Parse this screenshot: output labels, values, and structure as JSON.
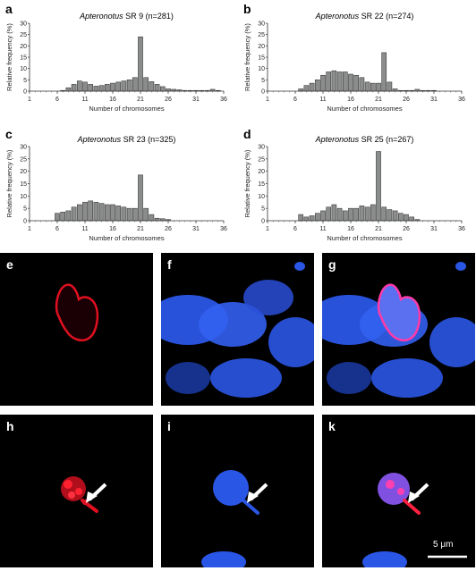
{
  "charts": [
    {
      "type": "bar",
      "panel": "a",
      "species": "Apteronotus",
      "title_rest": " SR 9 (n=281)",
      "xlabel": "Number of chromosomes",
      "ylabel": "Relative frequency (%)",
      "xticks": [
        1,
        6,
        11,
        16,
        21,
        26,
        31,
        36
      ],
      "xticklabels": [
        "1",
        "6",
        "11",
        "16",
        "21",
        "26",
        "31",
        "36"
      ],
      "yticks": [
        0,
        5,
        10,
        15,
        20,
        25,
        30
      ],
      "xlim": [
        1,
        36
      ],
      "ylim": [
        0,
        30
      ],
      "x": [
        7,
        8,
        9,
        10,
        11,
        12,
        13,
        14,
        15,
        16,
        17,
        18,
        19,
        20,
        21,
        22,
        23,
        24,
        25,
        26,
        27,
        28,
        29,
        30,
        31,
        32,
        33,
        34,
        35
      ],
      "values": [
        0.3,
        1.5,
        3.0,
        4.5,
        4.0,
        3.0,
        2.2,
        2.5,
        3.0,
        3.5,
        4.0,
        4.5,
        5.0,
        6.0,
        24.0,
        6.0,
        4.2,
        3.0,
        2.0,
        1.0,
        0.8,
        0.6,
        0.3,
        0.3,
        0.3,
        0.3,
        0.3,
        0.8,
        0.3
      ]
    },
    {
      "type": "bar",
      "panel": "b",
      "species": "Apteronotus",
      "title_rest": " SR 22 (n=274)",
      "xlabel": "Number of chromosomes",
      "ylabel": "Relative frequency (%)",
      "xticks": [
        1,
        6,
        11,
        16,
        21,
        26,
        31,
        36
      ],
      "xticklabels": [
        "1",
        "6",
        "11",
        "16",
        "21",
        "26",
        "31",
        "36"
      ],
      "yticks": [
        0,
        5,
        10,
        15,
        20,
        25,
        30
      ],
      "xlim": [
        1,
        36
      ],
      "ylim": [
        0,
        30
      ],
      "x": [
        7,
        8,
        9,
        10,
        11,
        12,
        13,
        14,
        15,
        16,
        17,
        18,
        19,
        20,
        21,
        22,
        23,
        24,
        25,
        26,
        27,
        28,
        29,
        30,
        31
      ],
      "values": [
        1.0,
        2.5,
        3.5,
        5.0,
        7.0,
        8.5,
        9.0,
        8.5,
        8.5,
        7.5,
        7.0,
        6.0,
        4.0,
        3.5,
        3.5,
        17.0,
        4.0,
        1.0,
        0.3,
        0.3,
        0.3,
        0.8,
        0.3,
        0.3,
        0.3
      ]
    },
    {
      "type": "bar",
      "panel": "c",
      "species": "Apteronotus",
      "title_rest": " SR 23 (n=325)",
      "xlabel": "Number of chromosomes",
      "ylabel": "Relative frequency (%)",
      "xticks": [
        1,
        6,
        11,
        16,
        21,
        26,
        31,
        36
      ],
      "xticklabels": [
        "1",
        "6",
        "11",
        "16",
        "21",
        "26",
        "31",
        "36"
      ],
      "yticks": [
        0,
        5,
        10,
        15,
        20,
        25,
        30
      ],
      "xlim": [
        1,
        36
      ],
      "ylim": [
        0,
        30
      ],
      "x": [
        6,
        7,
        8,
        9,
        10,
        11,
        12,
        13,
        14,
        15,
        16,
        17,
        18,
        19,
        20,
        21,
        22,
        23,
        24,
        25,
        26
      ],
      "values": [
        3.0,
        3.5,
        4.0,
        5.5,
        6.5,
        7.5,
        8.0,
        7.5,
        7.0,
        6.5,
        6.5,
        6.0,
        5.5,
        5.0,
        5.0,
        18.5,
        5.0,
        2.5,
        1.0,
        0.8,
        0.5
      ]
    },
    {
      "type": "bar",
      "panel": "d",
      "species": "Apteronotus",
      "title_rest": " SR 25 (n=267)",
      "xlabel": "Number of chromosomes",
      "ylabel": "Relative frequency (%)",
      "xticks": [
        1,
        6,
        11,
        16,
        21,
        26,
        31,
        36
      ],
      "xticklabels": [
        "1",
        "6",
        "11",
        "16",
        "21",
        "26",
        "31",
        "36"
      ],
      "yticks": [
        0,
        5,
        10,
        15,
        20,
        25,
        30
      ],
      "xlim": [
        1,
        36
      ],
      "ylim": [
        0,
        30
      ],
      "x": [
        7,
        8,
        9,
        10,
        11,
        12,
        13,
        14,
        15,
        16,
        17,
        18,
        19,
        20,
        21,
        22,
        23,
        24,
        25,
        26,
        27,
        28
      ],
      "values": [
        2.5,
        1.5,
        2.0,
        3.0,
        4.0,
        5.5,
        6.5,
        5.0,
        4.0,
        5.0,
        5.0,
        6.0,
        5.5,
        6.5,
        28.0,
        5.5,
        4.5,
        4.0,
        3.0,
        2.5,
        1.5,
        0.5
      ]
    }
  ],
  "micrographs": {
    "panels": [
      "e",
      "f",
      "g",
      "h",
      "i",
      "k"
    ],
    "scale_bar_label": "5 μm",
    "colors": {
      "red": "#e01020",
      "blue": "#2a56e6",
      "background": "#000000"
    }
  }
}
